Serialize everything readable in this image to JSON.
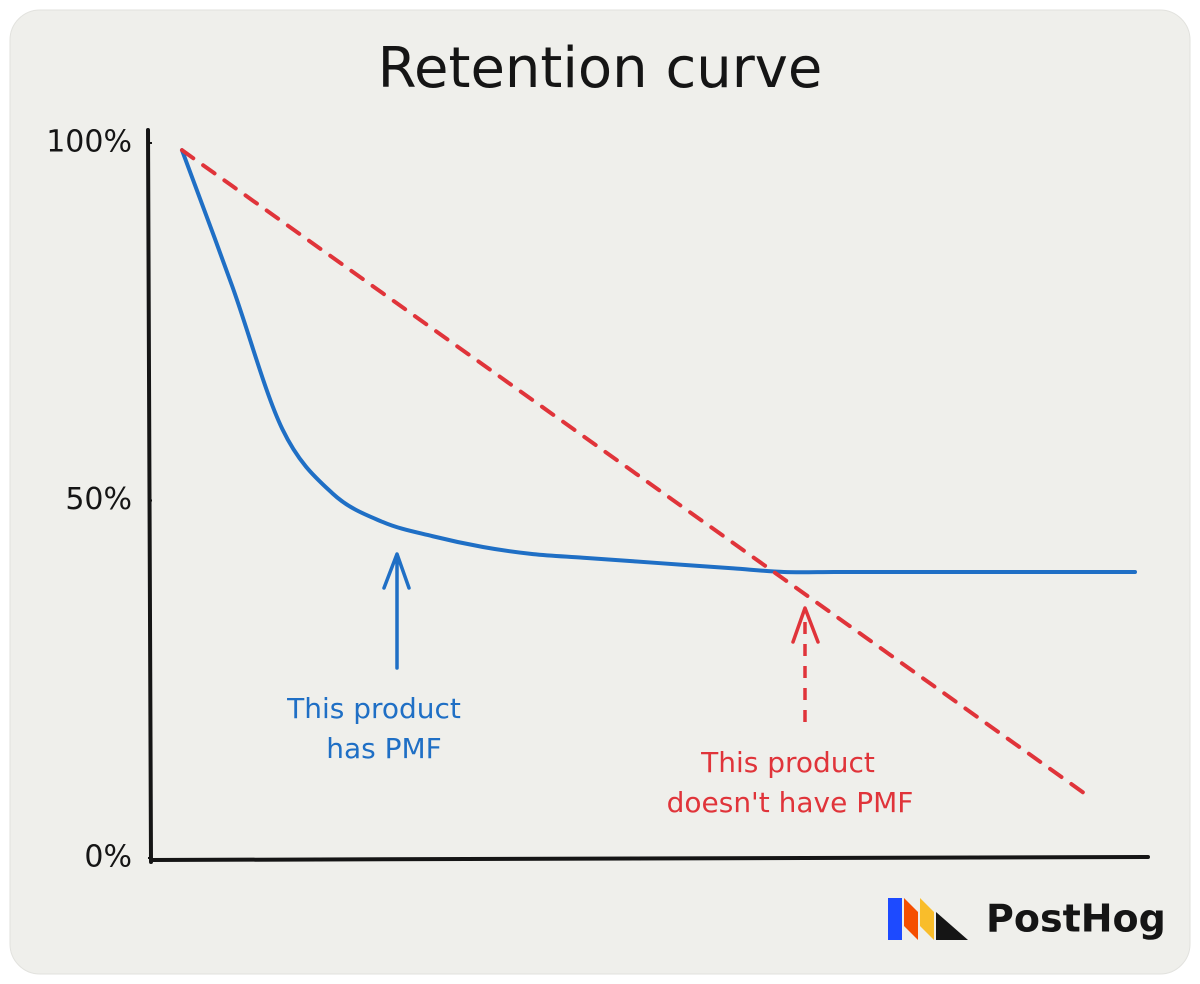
{
  "chart_data": {
    "type": "line",
    "title": "Retention curve",
    "categories": [
      null,
      null,
      null,
      null,
      null,
      null,
      null,
      null,
      null,
      null,
      null,
      null,
      null,
      null,
      null,
      null,
      null,
      null,
      null,
      null
    ],
    "series": [
      {
        "color": "#1f6fc5",
        "dashed": false,
        "values": [
          99,
          80,
          60,
          51,
          47,
          45,
          43.5,
          42.5,
          42,
          41.5,
          41,
          40.5,
          40,
          40,
          40,
          40,
          40,
          40,
          40,
          40
        ]
      },
      {
        "color": "#e0343a",
        "dashed": true,
        "values": [
          99,
          94,
          89,
          84,
          79,
          74,
          69,
          64,
          59,
          54,
          49,
          44,
          39,
          34,
          29,
          24,
          19,
          14,
          9,
          null
        ]
      }
    ],
    "ylim": [
      0,
      100
    ],
    "yticks": [
      {
        "value": 0,
        "label": "0%"
      },
      {
        "value": 50,
        "label": "50%"
      },
      {
        "value": 100,
        "label": "100%"
      }
    ],
    "grid": false,
    "annotations": [
      [
        "This product",
        "has PMF"
      ],
      [
        "This product",
        "doesn't have PMF"
      ]
    ],
    "logo": "PostHog"
  }
}
